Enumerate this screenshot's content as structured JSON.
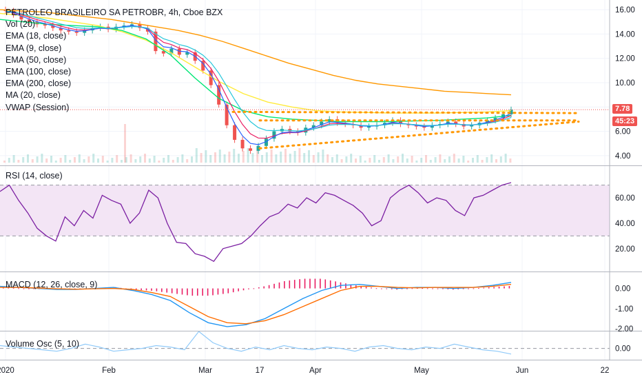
{
  "legend": {
    "title": "PETROLEO BRASILEIRO SA PETROBR, 4h, Cboe BZX",
    "lines": [
      "Vol (20)",
      "EMA (18, close)",
      "EMA (9, close)",
      "EMA (50, close)",
      "EMA (100, close)",
      "EMA (200, close)",
      "MA (20, close)",
      "VWAP (Session)"
    ]
  },
  "panes": {
    "rsi_label": "RSI (14, close)",
    "macd_label": "MACD (12, 26, close, 9)",
    "volosc_label": "Volume Osc (5, 10)"
  },
  "price_tags": {
    "last": "7.78",
    "countdown": "45:23",
    "last_color": "#ef5350",
    "countdown_color": "#ef5350"
  },
  "colors": {
    "up": "#26a69a",
    "down": "#ef5350",
    "ema18": "#e91e63",
    "ema9": "#2962ff",
    "ema50": "#00e676",
    "ema100": "#ffeb3b",
    "ema200": "#ff9800",
    "ma20": "#26c6da",
    "rsi": "#7b1fa2",
    "rsi_band": "#f3e5f5",
    "trendline": "#ff9800",
    "macd": "#2196f3",
    "signal": "#ff6d00",
    "hist": "#e91e63",
    "volosc": "#90caf9"
  },
  "chart_data": [
    {
      "type": "candlestick",
      "pane": "price",
      "x_labels": [
        "2020",
        "Feb",
        "Mar",
        "17",
        "Apr",
        "May",
        "Jun",
        "22"
      ],
      "y_ticks": [
        "16.00",
        "14.00",
        "12.00",
        "10.00",
        "8.00",
        "6.00",
        "4.00"
      ],
      "ylim": [
        3.2,
        16.8
      ],
      "close": [
        15.9,
        15.6,
        15.2,
        15.0,
        14.8,
        14.7,
        14.5,
        14.3,
        14.2,
        14.1,
        14.3,
        14.5,
        14.6,
        14.4,
        14.6,
        14.7,
        14.8,
        14.5,
        14.2,
        12.6,
        12.4,
        12.8,
        12.3,
        12.5,
        11.8,
        11.0,
        9.8,
        8.2,
        6.5,
        5.3,
        4.6,
        4.4,
        4.8,
        5.4,
        6.0,
        6.2,
        6.0,
        5.9,
        6.3,
        6.5,
        6.8,
        7.0,
        6.7,
        6.6,
        6.5,
        6.3,
        6.4,
        6.5,
        6.7,
        6.9,
        6.6,
        6.5,
        6.4,
        6.3,
        6.5,
        6.6,
        6.8,
        6.6,
        6.4,
        6.5,
        6.7,
        6.9,
        7.1,
        7.4,
        7.78
      ],
      "ema200": [
        16.0,
        15.9,
        15.8,
        15.6,
        15.4,
        15.2,
        14.9,
        14.6,
        14.3,
        13.9,
        13.4,
        12.8,
        12.2,
        11.6,
        11.1,
        10.6,
        10.2,
        9.9,
        9.7,
        9.5,
        9.3,
        9.2,
        9.1,
        9.0
      ],
      "ema100": [
        15.7,
        15.5,
        15.3,
        15.0,
        14.7,
        14.2,
        13.5,
        12.5,
        11.3,
        10.1,
        9.1,
        8.4,
        8.0,
        7.7,
        7.6,
        7.55,
        7.5,
        7.5,
        7.5,
        7.55,
        7.6,
        7.7
      ],
      "ema50": [
        15.2,
        15.0,
        14.8,
        14.7,
        14.6,
        14.3,
        13.6,
        12.3,
        10.4,
        8.7,
        7.7,
        7.2,
        7.0,
        6.9,
        6.8,
        6.8,
        6.8,
        6.85,
        6.9,
        7.0,
        7.1,
        7.3
      ],
      "trendlines": [
        {
          "from": [
            "Mar",
            7.6
          ],
          "to": [
            "Jun",
            7.5
          ]
        },
        {
          "from": [
            "17",
            6.9
          ],
          "to": [
            "Jun",
            6.9
          ]
        },
        {
          "from": [
            "17",
            4.6
          ],
          "to": [
            "Jun",
            6.8
          ]
        }
      ]
    },
    {
      "type": "line",
      "pane": "rsi",
      "series": [
        {
          "name": "RSI (14, close)",
          "values": [
            65,
            70,
            58,
            48,
            36,
            30,
            26,
            45,
            38,
            50,
            44,
            62,
            58,
            55,
            40,
            48,
            66,
            60,
            40,
            25,
            24,
            16,
            14,
            10,
            20,
            22,
            24,
            30,
            38,
            45,
            48,
            55,
            52,
            60,
            56,
            64,
            62,
            58,
            54,
            48,
            38,
            42,
            60,
            66,
            70,
            64,
            56,
            60,
            58,
            50,
            46,
            60,
            62,
            66,
            70,
            72
          ]
        }
      ],
      "y_ticks": [
        "60.00",
        "40.00",
        "20.00"
      ],
      "ylim": [
        2,
        85
      ],
      "band": [
        30,
        70
      ]
    },
    {
      "type": "line",
      "pane": "macd",
      "series": [
        {
          "name": "MACD",
          "values": [
            0.1,
            0.05,
            0.0,
            -0.05,
            -0.05,
            0.0,
            0.05,
            -0.1,
            -0.3,
            -0.6,
            -1.2,
            -1.7,
            -1.9,
            -1.8,
            -1.5,
            -1.0,
            -0.5,
            -0.1,
            0.15,
            0.2,
            0.1,
            0.0,
            0.05,
            0.05,
            0.0,
            0.05,
            0.15,
            0.3
          ]
        },
        {
          "name": "Signal",
          "values": [
            0.05,
            0.05,
            0.02,
            -0.02,
            -0.04,
            -0.02,
            0.0,
            -0.05,
            -0.2,
            -0.4,
            -0.9,
            -1.4,
            -1.7,
            -1.75,
            -1.6,
            -1.3,
            -0.9,
            -0.5,
            -0.1,
            0.1,
            0.1,
            0.05,
            0.03,
            0.05,
            0.05,
            0.05,
            0.1,
            0.2
          ]
        }
      ],
      "y_ticks": [
        "0.00",
        "-1.00",
        "-2.00"
      ],
      "ylim": [
        -2.1,
        0.6
      ]
    },
    {
      "type": "line",
      "pane": "volume_osc",
      "series": [
        {
          "name": "Volume Osc (5, 10)",
          "values": [
            10,
            5,
            0,
            -5,
            -10,
            0,
            15,
            5,
            -10,
            -5,
            0,
            10,
            5,
            -5,
            60,
            20,
            0,
            -10,
            5,
            -5,
            10,
            0,
            -5,
            5,
            0,
            -10,
            5,
            10,
            0,
            -5,
            5,
            0,
            15,
            5,
            -5,
            -10,
            -20
          ]
        }
      ],
      "y_ticks": [
        "0.00"
      ],
      "ylim": [
        -40,
        60
      ]
    }
  ]
}
